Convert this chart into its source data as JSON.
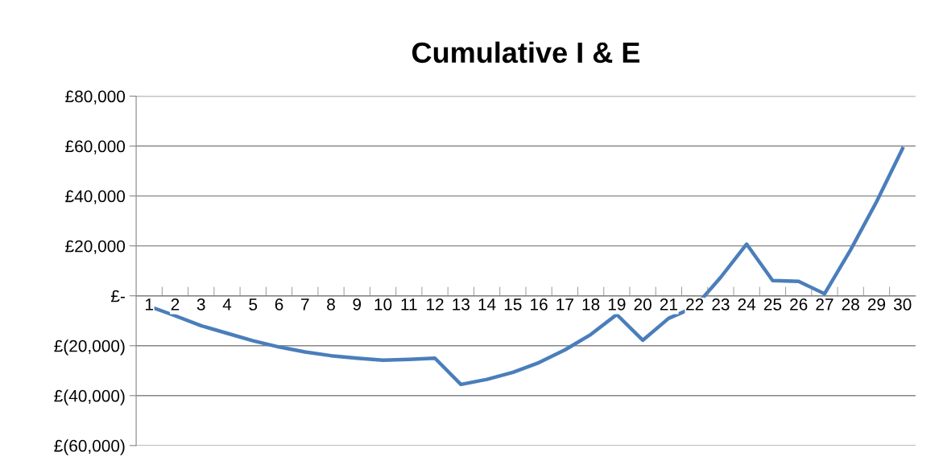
{
  "chart_data": {
    "type": "line",
    "title": "Cumulative I & E",
    "categories": [
      "1",
      "2",
      "3",
      "4",
      "5",
      "6",
      "7",
      "8",
      "9",
      "10",
      "11",
      "12",
      "13",
      "14",
      "15",
      "16",
      "17",
      "18",
      "19",
      "20",
      "21",
      "22",
      "23",
      "24",
      "25",
      "26",
      "27",
      "28",
      "29",
      "30"
    ],
    "series": [
      {
        "color": "#4a7ebb",
        "values": [
          -4200,
          -8000,
          -12000,
          -15000,
          -18000,
          -20500,
          -22500,
          -24000,
          -25000,
          -25800,
          -25500,
          -25000,
          -35500,
          -33500,
          -30700,
          -26800,
          -21700,
          -15500,
          -7500,
          -17800,
          -9000,
          -4500,
          7400,
          20700,
          6100,
          5800,
          800,
          18400,
          37700,
          59000
        ]
      }
    ],
    "ylim": [
      -60000,
      80000
    ],
    "yticks": [
      {
        "value": -60000,
        "label": "£(60,000)"
      },
      {
        "value": -40000,
        "label": "£(40,000)"
      },
      {
        "value": -20000,
        "label": "£(20,000)"
      },
      {
        "value": 0,
        "label": "£-"
      },
      {
        "value": 20000,
        "label": "£20,000"
      },
      {
        "value": 40000,
        "label": "£40,000"
      },
      {
        "value": 60000,
        "label": "£60,000"
      },
      {
        "value": 80000,
        "label": "£80,000"
      }
    ],
    "grid": "y",
    "marker": "none",
    "line_style": "solid"
  }
}
